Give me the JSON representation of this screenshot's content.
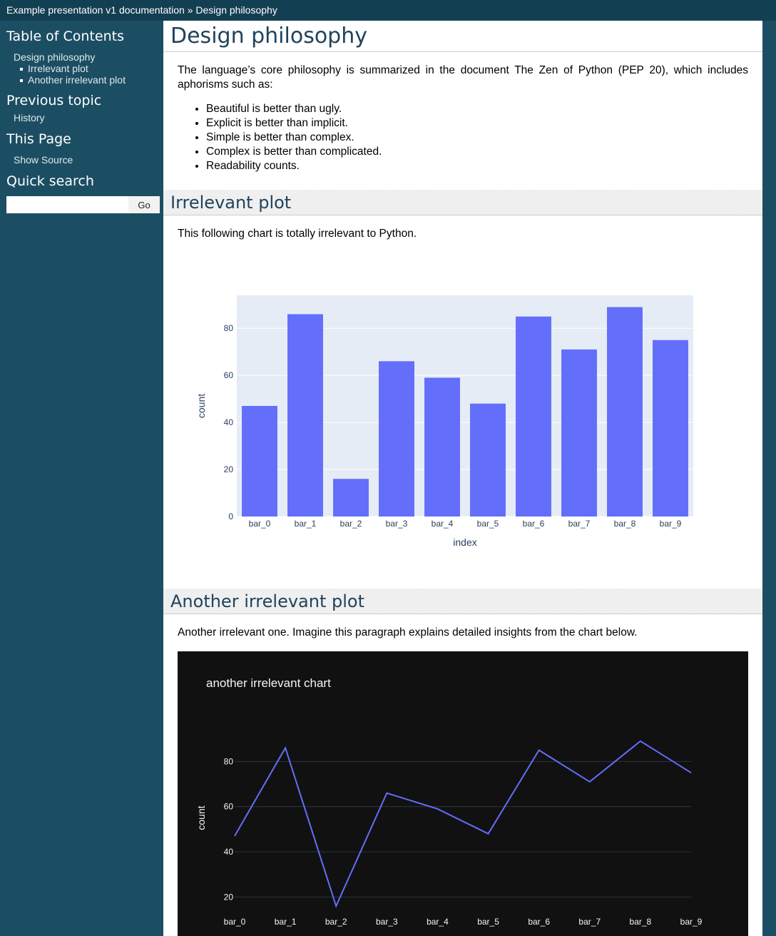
{
  "breadcrumb": {
    "docs_link": "Example presentation v1 documentation",
    "separator": "»",
    "current": "Design philosophy"
  },
  "sidebar": {
    "toc_title": "Table of Contents",
    "toc_items": [
      {
        "label": "Design philosophy"
      },
      {
        "label": "Irrelevant plot"
      },
      {
        "label": "Another irrelevant plot"
      }
    ],
    "previous_title": "Previous topic",
    "previous_link": "History",
    "this_page_title": "This Page",
    "show_source": "Show Source",
    "search_title": "Quick search",
    "search_value": "",
    "go_label": "Go"
  },
  "content": {
    "title": "Design philosophy",
    "intro": "The language’s core philosophy is summarized in the document The Zen of Python (PEP 20), which includes aphorisms such as:",
    "aphorisms": [
      "Beautiful is better than ugly.",
      "Explicit is better than implicit.",
      "Simple is better than complex.",
      "Complex is better than complicated.",
      "Readability counts."
    ],
    "section1_title": "Irrelevant plot",
    "section1_text": "This following chart is totally irrelevant to Python.",
    "section2_title": "Another irrelevant plot",
    "section2_text": "Another irrelevant one. Imagine this paragraph explains detailed insights from the chart below."
  },
  "colors": {
    "sidebar_bg": "#1c4e63",
    "heading_text": "#20435c",
    "bar_color": "#636efa",
    "plot_bg_light": "#e5ecf6",
    "dark_bg": "#111111"
  },
  "chart_data": [
    {
      "type": "bar",
      "title": "",
      "xlabel": "index",
      "ylabel": "count",
      "categories": [
        "bar_0",
        "bar_1",
        "bar_2",
        "bar_3",
        "bar_4",
        "bar_5",
        "bar_6",
        "bar_7",
        "bar_8",
        "bar_9"
      ],
      "values": [
        47,
        86,
        16,
        66,
        59,
        48,
        85,
        71,
        89,
        75
      ],
      "ylim": [
        0,
        94
      ],
      "yticks": [
        0,
        20,
        40,
        60,
        80
      ],
      "grid": true,
      "theme": "light"
    },
    {
      "type": "line",
      "title": "another irrelevant chart",
      "xlabel": "",
      "ylabel": "count",
      "categories": [
        "bar_0",
        "bar_1",
        "bar_2",
        "bar_3",
        "bar_4",
        "bar_5",
        "bar_6",
        "bar_7",
        "bar_8",
        "bar_9"
      ],
      "values": [
        47,
        86,
        16,
        66,
        59,
        48,
        85,
        71,
        89,
        75
      ],
      "ylim": [
        16,
        94
      ],
      "yticks": [
        20,
        40,
        60,
        80
      ],
      "grid": true,
      "theme": "dark"
    }
  ]
}
